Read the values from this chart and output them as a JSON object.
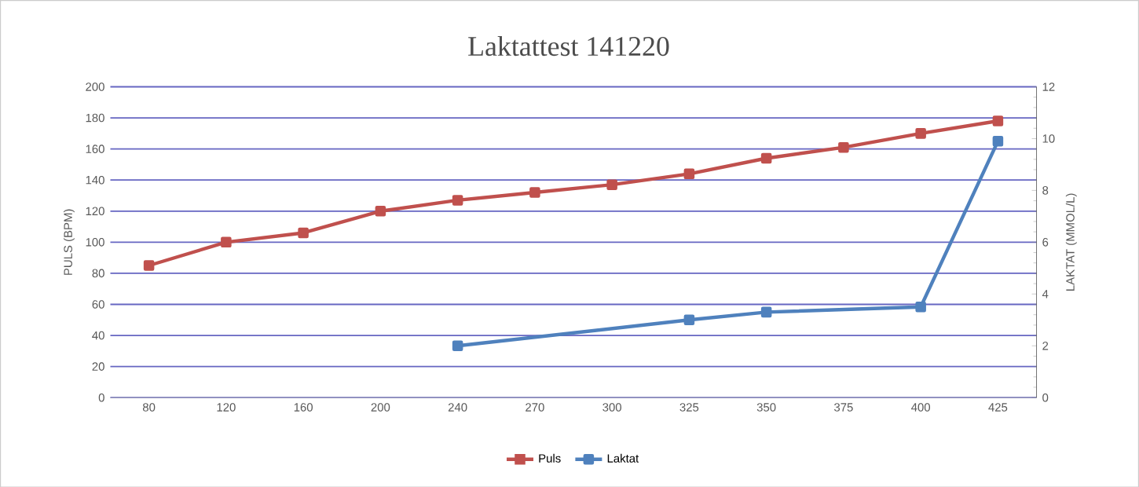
{
  "chart_data": {
    "type": "line",
    "title": "Laktattest 141220",
    "categories": [
      "80",
      "120",
      "160",
      "200",
      "240",
      "270",
      "300",
      "325",
      "350",
      "375",
      "400",
      "425"
    ],
    "series": [
      {
        "name": "Puls",
        "color": "#c0504d",
        "values": [
          85,
          100,
          106,
          120,
          127,
          132,
          137,
          144,
          154,
          161,
          170,
          178
        ]
      },
      {
        "name": "Laktat",
        "color": "#4f81bd",
        "axis": "y2",
        "values": [
          null,
          null,
          null,
          null,
          2.0,
          null,
          null,
          3.0,
          3.3,
          null,
          3.5,
          9.9
        ]
      }
    ],
    "ylabel": "PULS (BPM)",
    "y2label": "LAKTAT (MMOL/L)",
    "ylim": [
      0,
      200
    ],
    "yticks": [
      0,
      20,
      40,
      60,
      80,
      100,
      120,
      140,
      160,
      180,
      200
    ],
    "y2lim": [
      0,
      12
    ],
    "y2ticks": [
      0,
      2,
      4,
      6,
      8,
      10,
      12
    ],
    "grid": "y",
    "legend": "bottom",
    "marker": "square",
    "line_style": "solid"
  }
}
